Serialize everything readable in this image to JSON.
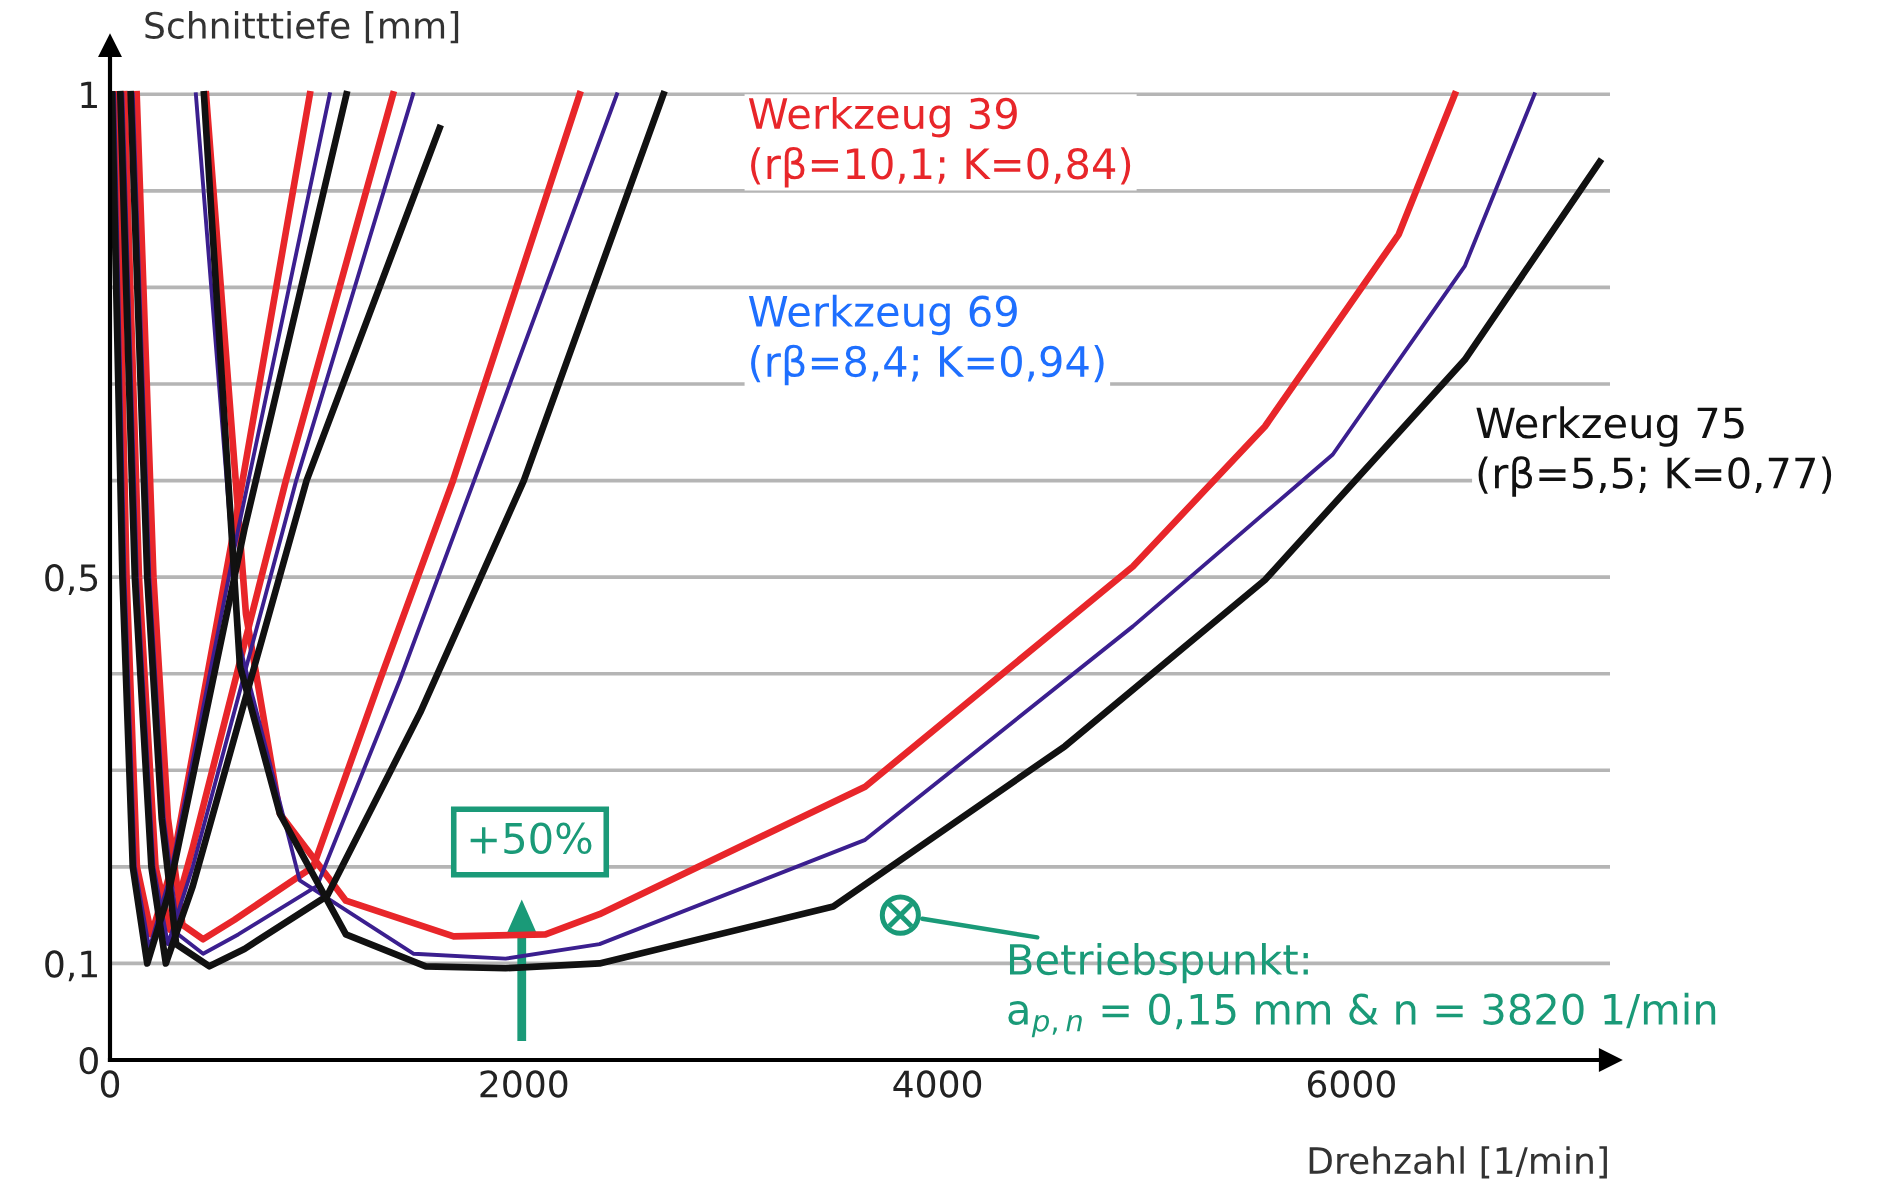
{
  "chart_data": {
    "type": "line",
    "xlabel": "Drehzahl [1/min]",
    "ylabel": "Schnitttiefe [mm]",
    "xlim": [
      0,
      7250
    ],
    "ylim": [
      0,
      1.05
    ],
    "xticks": [
      0,
      2000,
      4000,
      6000
    ],
    "yticks": [
      0,
      {
        "value": 0.1,
        "label": "0,1"
      },
      {
        "value": 0.2,
        "label": null
      },
      {
        "value": 0.3,
        "label": null
      },
      {
        "value": 0.4,
        "label": null
      },
      {
        "value": 0.5,
        "label": "0,5"
      },
      {
        "value": 0.6,
        "label": null
      },
      {
        "value": 0.7,
        "label": null
      },
      {
        "value": 0.8,
        "label": null
      },
      {
        "value": 0.9,
        "label": null
      },
      1
    ],
    "grid": "y",
    "legend": false,
    "marker": "none",
    "line_style": "solid",
    "series": [
      {
        "color": "#e8262a",
        "x": [
          30,
          80,
          130,
          200,
          300,
          600,
          966
        ],
        "values": [
          1.0,
          0.5,
          0.2,
          0.13,
          0.2,
          0.55,
          1.0
        ]
      },
      {
        "color": "#e8262a",
        "x": [
          70,
          140,
          220,
          290,
          400,
          850,
          1368
        ],
        "values": [
          1.0,
          0.5,
          0.2,
          0.135,
          0.22,
          0.6,
          1.0
        ]
      },
      {
        "color": "#e8262a",
        "x": [
          129,
          210,
          280,
          350,
          450,
          600,
          982,
          1304,
          1658,
          2270
        ],
        "values": [
          1.0,
          0.5,
          0.25,
          0.14,
          0.125,
          0.145,
          0.2,
          0.393,
          0.6,
          1.0
        ]
      },
      {
        "color": "#e8262a",
        "x": [
          464,
          657,
          821,
          1140,
          1661,
          2105,
          2366,
          3650,
          4944,
          5582,
          6229,
          6500
        ],
        "values": [
          1.0,
          0.462,
          0.255,
          0.165,
          0.128,
          0.13,
          0.151,
          0.283,
          0.511,
          0.656,
          0.855,
          1.0
        ]
      },
      {
        "color": "#3b1f8f",
        "x": [
          20,
          70,
          120,
          190,
          290,
          620,
          1062
        ],
        "values": [
          1.0,
          0.5,
          0.2,
          0.115,
          0.19,
          0.55,
          1.0
        ]
      },
      {
        "color": "#3b1f8f",
        "x": [
          60,
          130,
          210,
          280,
          400,
          900,
          1465
        ],
        "values": [
          1.0,
          0.5,
          0.2,
          0.12,
          0.2,
          0.6,
          1.0
        ]
      },
      {
        "color": "#3b1f8f",
        "x": [
          110,
          190,
          260,
          330,
          450,
          620,
          1000,
          1400,
          1760,
          2450
        ],
        "values": [
          1.0,
          0.5,
          0.25,
          0.13,
          0.11,
          0.13,
          0.18,
          0.393,
          0.6,
          1.0
        ]
      },
      {
        "color": "#3b1f8f",
        "x": [
          415,
          628,
          917,
          1468,
          1912,
          2366,
          3650,
          4944,
          5910,
          6548,
          6885
        ],
        "values": [
          1.0,
          0.428,
          0.186,
          0.11,
          0.105,
          0.12,
          0.228,
          0.449,
          0.627,
          0.822,
          1.0
        ]
      },
      {
        "color": "#111111",
        "x": [
          10,
          60,
          110,
          180,
          280,
          650,
          1143
        ],
        "values": [
          1.0,
          0.5,
          0.2,
          0.1,
          0.17,
          0.55,
          1.0
        ]
      },
      {
        "color": "#111111",
        "x": [
          50,
          120,
          200,
          270,
          400,
          950,
          1593
        ],
        "values": [
          1.0,
          0.5,
          0.2,
          0.1,
          0.18,
          0.6,
          0.965
        ]
      },
      {
        "color": "#111111",
        "x": [
          100,
          180,
          250,
          320,
          480,
          650,
          1050,
          1500,
          2000,
          2675
        ],
        "values": [
          1.0,
          0.5,
          0.25,
          0.12,
          0.097,
          0.115,
          0.17,
          0.36,
          0.6,
          1.0
        ]
      },
      {
        "color": "#111111",
        "x": [
          454,
          628,
          821,
          1140,
          1526,
          1912,
          2366,
          3496,
          4616,
          5582,
          6548,
          7200
        ],
        "values": [
          1.0,
          0.408,
          0.255,
          0.13,
          0.097,
          0.095,
          0.1,
          0.159,
          0.325,
          0.497,
          0.725,
          0.93
        ]
      }
    ],
    "annotations": [
      "Werkzeug 39\n(rβ=10,1; K=0,84)",
      "Werkzeug 69\n(rβ=8,4; K=0,94)",
      "Werkzeug 75\n(rβ=5,5; K=0,77)",
      "+50%",
      {
        "text": "Betriebspunkt:\na$_{p,n}$ = 0,15 mm & n = 3820 1/min",
        "x": 3820,
        "y": 0.15
      }
    ]
  }
}
